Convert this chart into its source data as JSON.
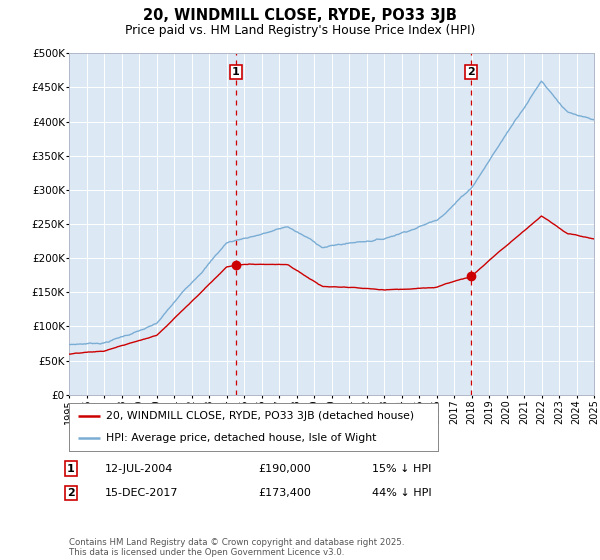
{
  "title": "20, WINDMILL CLOSE, RYDE, PO33 3JB",
  "subtitle": "Price paid vs. HM Land Registry's House Price Index (HPI)",
  "hpi_color": "#7aadd4",
  "price_color": "#cc0000",
  "vline_color": "#cc0000",
  "bg_color": "#dde8f5",
  "ylim": [
    0,
    500000
  ],
  "yticks": [
    0,
    50000,
    100000,
    150000,
    200000,
    250000,
    300000,
    350000,
    400000,
    450000,
    500000
  ],
  "ytick_labels": [
    "£0",
    "£50K",
    "£100K",
    "£150K",
    "£200K",
    "£250K",
    "£300K",
    "£350K",
    "£400K",
    "£450K",
    "£500K"
  ],
  "event1_year": 2004.53,
  "event1_price": 190000,
  "event1_label": "1",
  "event2_year": 2017.96,
  "event2_price": 173400,
  "event2_label": "2",
  "legend_line1": "20, WINDMILL CLOSE, RYDE, PO33 3JB (detached house)",
  "legend_line2": "HPI: Average price, detached house, Isle of Wight",
  "table_row1": [
    "1",
    "12-JUL-2004",
    "£190,000",
    "15% ↓ HPI"
  ],
  "table_row2": [
    "2",
    "15-DEC-2017",
    "£173,400",
    "44% ↓ HPI"
  ],
  "footnote": "Contains HM Land Registry data © Crown copyright and database right 2025.\nThis data is licensed under the Open Government Licence v3.0.",
  "xmin": 1995,
  "xmax": 2025
}
